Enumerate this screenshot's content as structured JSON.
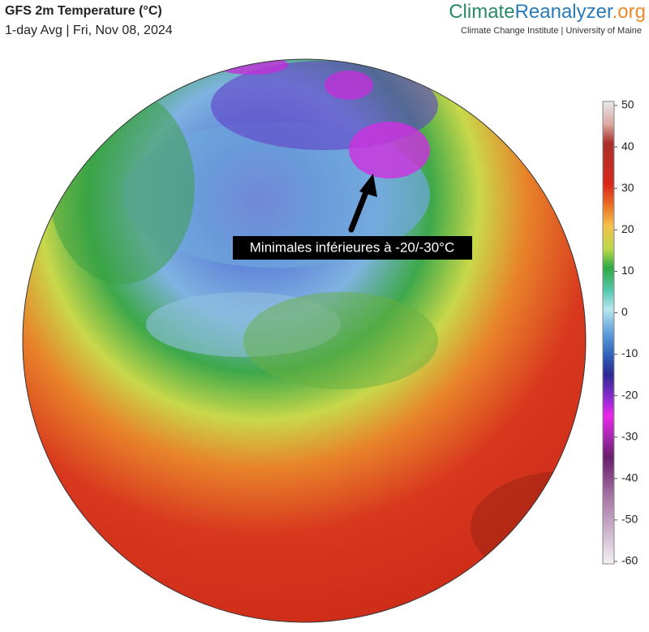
{
  "header": {
    "title": "GFS 2m Temperature (°C)",
    "subtitle": "1-day Avg | Fri, Nov 08, 2024"
  },
  "brand": {
    "parts": [
      "Climate",
      "Reanalyzer",
      ".org"
    ],
    "tagline": "Climate Change Institute | University of Maine"
  },
  "annotation": "Minimales inférieures à -20/-30°C",
  "colorbar": {
    "range": [
      -60,
      50
    ],
    "ticks": [
      50,
      40,
      30,
      20,
      10,
      0,
      -10,
      -20,
      -30,
      -40,
      -50,
      -60
    ]
  }
}
